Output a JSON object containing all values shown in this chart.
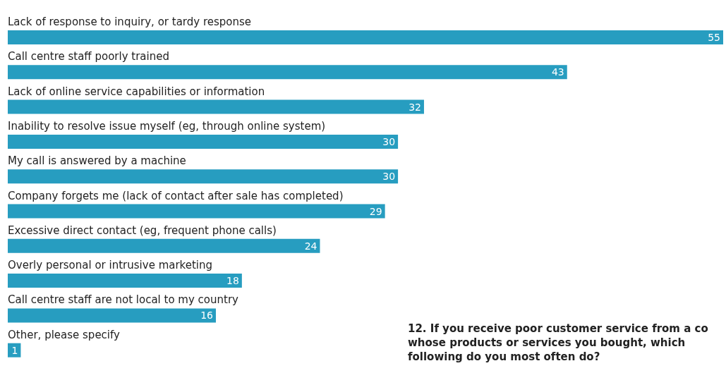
{
  "chart_data": {
    "type": "bar",
    "orientation": "horizontal",
    "data_labels": true,
    "color": "#279dc0",
    "categories": [
      "Lack of response to inquiry, or tardy response",
      "Call centre staff poorly trained",
      "Lack of online service capabilities or information",
      "Inability to resolve issue myself (eg, through online system)",
      "My call is answered by a machine",
      "Company forgets me (lack of contact after sale has completed)",
      "Excessive direct contact (eg, frequent phone calls)",
      "Overly personal or intrusive marketing",
      "Call centre staff are not local to my country",
      "Other, please specify"
    ],
    "values": [
      55,
      43,
      32,
      30,
      30,
      29,
      24,
      18,
      16,
      1
    ],
    "annotations": [
      "12. If you receive poor customer service from a co\nwhose products or services you bought, which\nfollowing do you most often do?"
    ]
  }
}
